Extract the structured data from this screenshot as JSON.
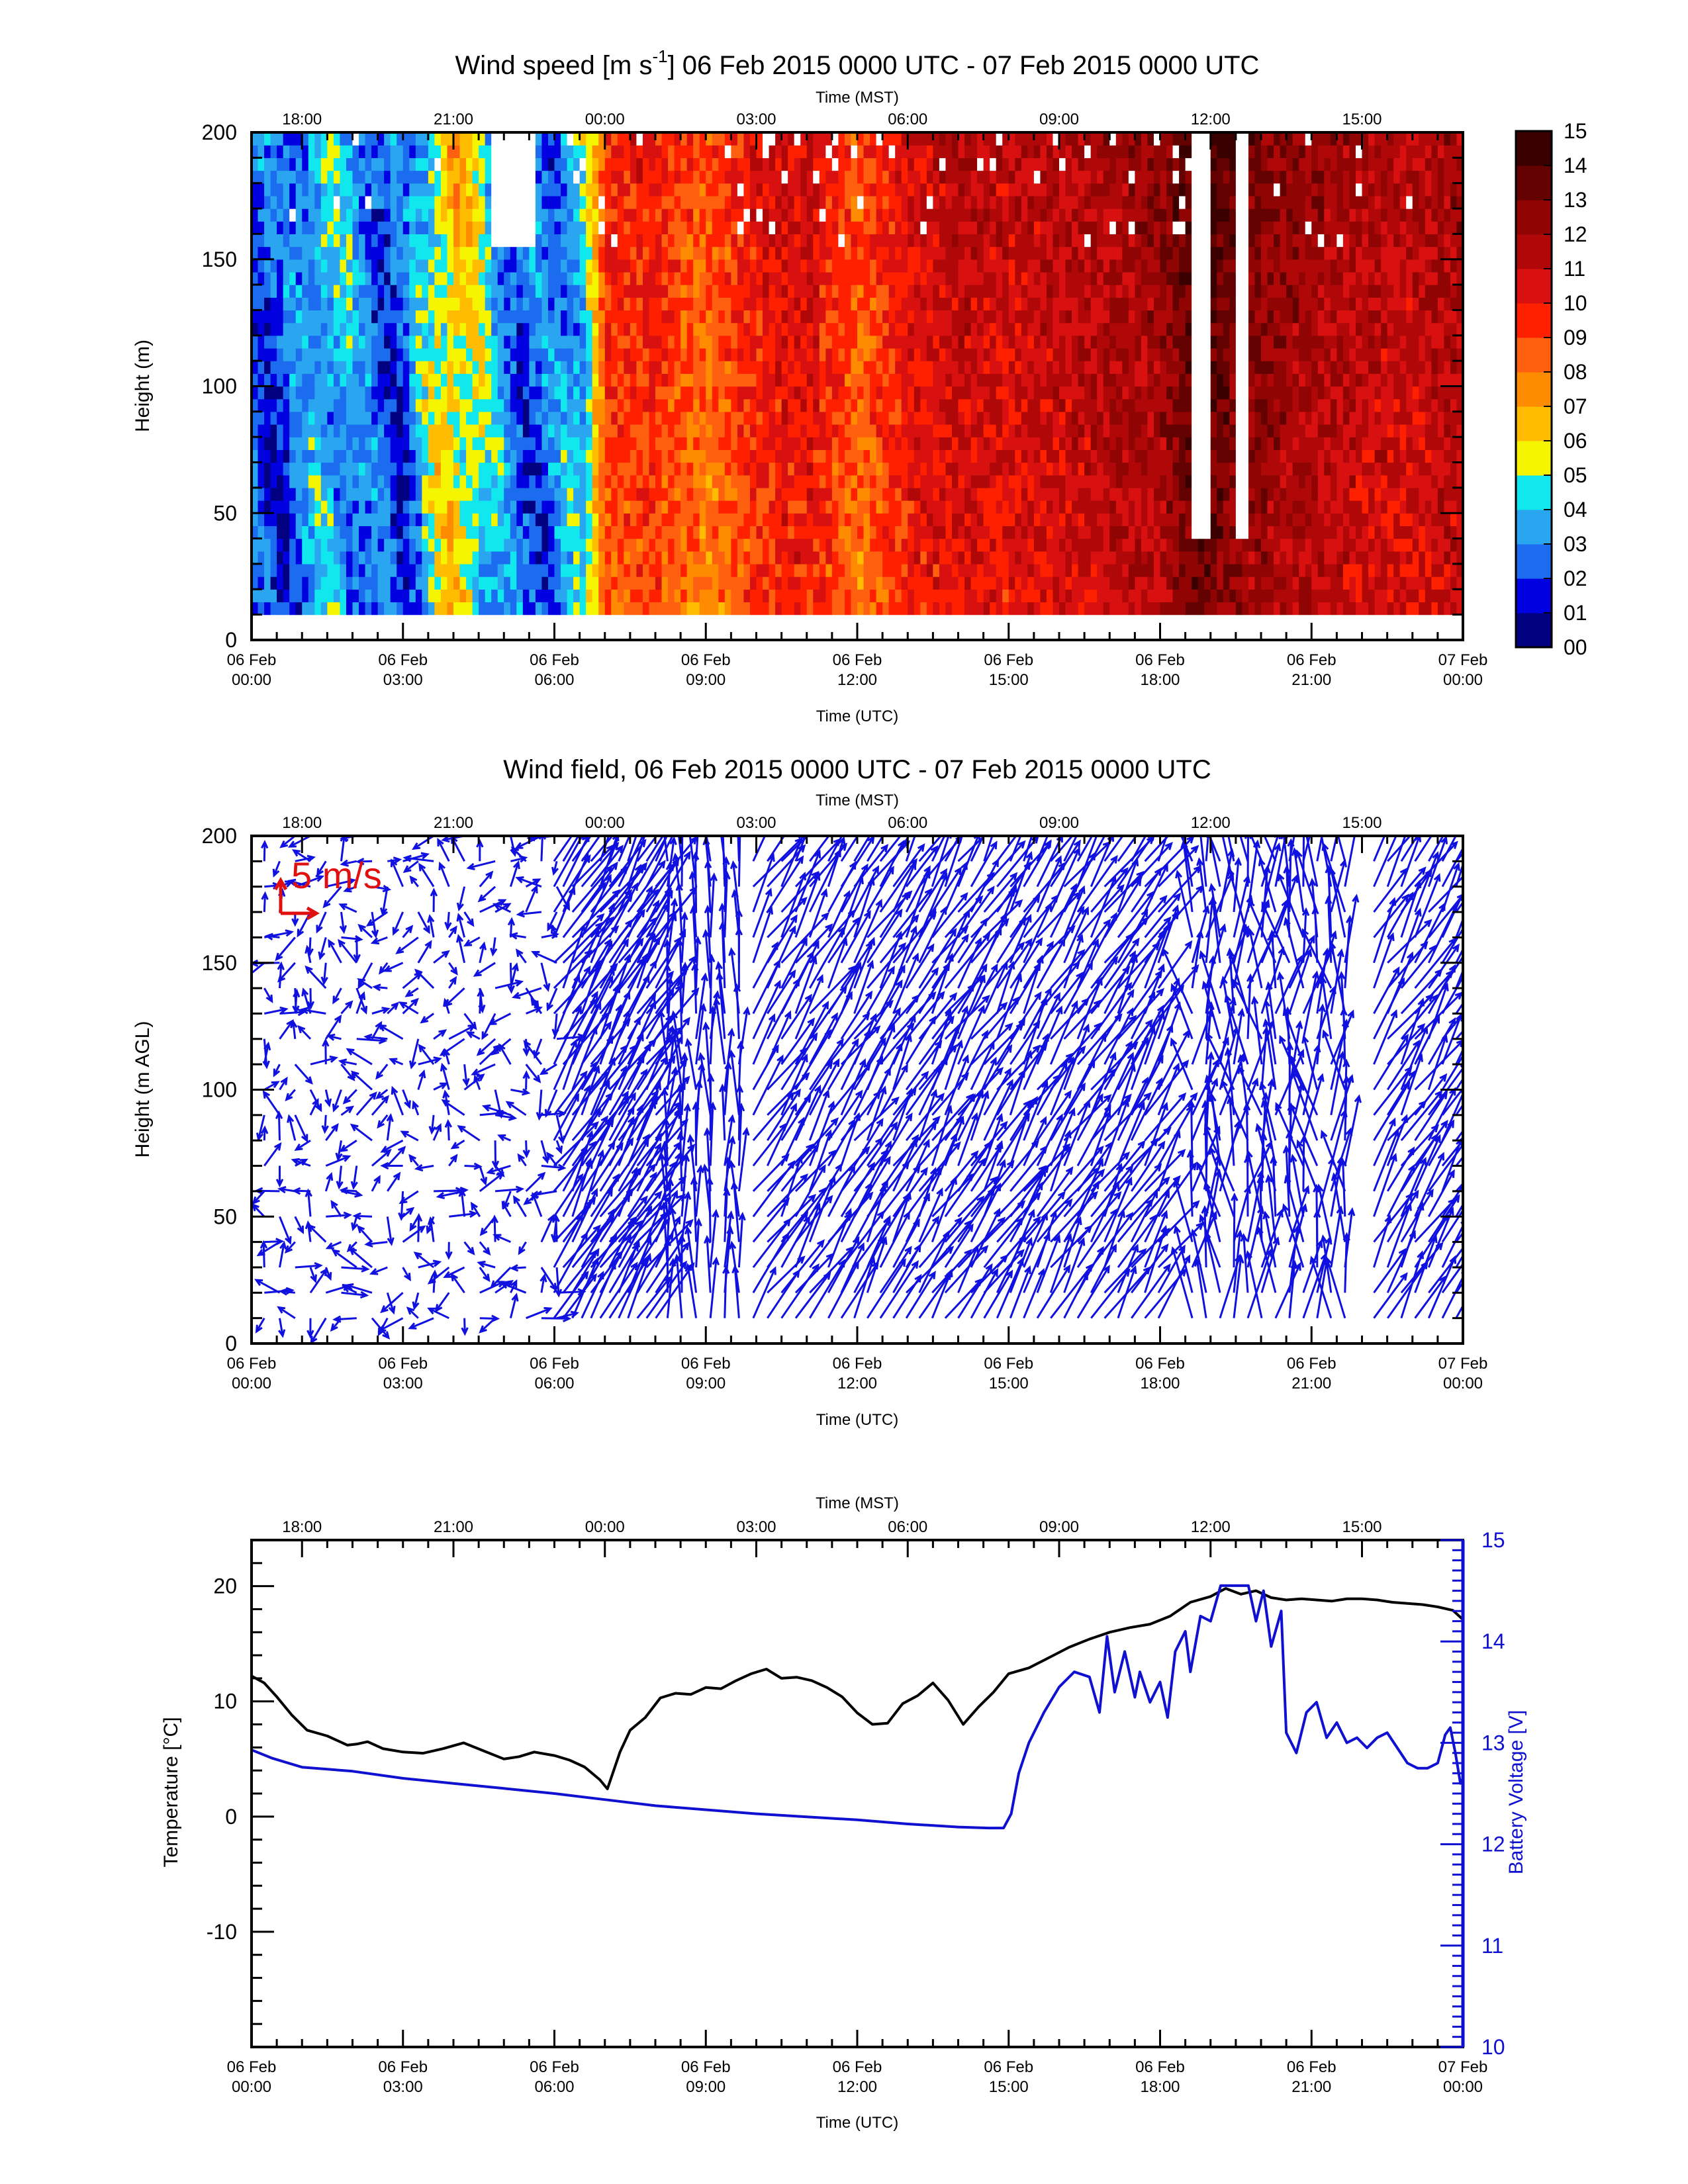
{
  "chart_data": [
    {
      "type": "heatmap",
      "title": "Wind speed [m s-1] 06 Feb 2015 0000 UTC - 07 Feb 2015 0000 UTC",
      "title_parts": {
        "pre": "Wind speed [m s",
        "sup": "-1",
        "post": "] 06 Feb 2015 0000 UTC - 07 Feb 2015 0000 UTC"
      },
      "xlabel": "Time (UTC)",
      "x2label": "Time (MST)",
      "ylabel": "Height (m)",
      "xlim": [
        0,
        24
      ],
      "ylim": [
        0,
        200
      ],
      "xticks_bottom": [
        {
          "x": 0,
          "l1": "06 Feb",
          "l2": "00:00"
        },
        {
          "x": 3,
          "l1": "06 Feb",
          "l2": "03:00"
        },
        {
          "x": 6,
          "l1": "06 Feb",
          "l2": "06:00"
        },
        {
          "x": 9,
          "l1": "06 Feb",
          "l2": "09:00"
        },
        {
          "x": 12,
          "l1": "06 Feb",
          "l2": "12:00"
        },
        {
          "x": 15,
          "l1": "06 Feb",
          "l2": "15:00"
        },
        {
          "x": 18,
          "l1": "06 Feb",
          "l2": "18:00"
        },
        {
          "x": 21,
          "l1": "06 Feb",
          "l2": "21:00"
        },
        {
          "x": 24,
          "l1": "07 Feb",
          "l2": "00:00"
        }
      ],
      "xticks_top": [
        {
          "x": 1,
          "l": "18:00"
        },
        {
          "x": 4,
          "l": "21:00"
        },
        {
          "x": 7,
          "l": "00:00"
        },
        {
          "x": 10,
          "l": "03:00"
        },
        {
          "x": 13,
          "l": "06:00"
        },
        {
          "x": 16,
          "l": "09:00"
        },
        {
          "x": 19,
          "l": "12:00"
        },
        {
          "x": 22,
          "l": "15:00"
        }
      ],
      "yticks": [
        0,
        50,
        100,
        150,
        200
      ],
      "data_ylim": [
        10,
        200
      ],
      "colorbar": {
        "levels": [
          "00",
          "01",
          "02",
          "03",
          "04",
          "05",
          "06",
          "07",
          "08",
          "09",
          "10",
          "11",
          "12",
          "13",
          "14",
          "15"
        ],
        "colors": [
          "#000080",
          "#0000e0",
          "#1c6cf0",
          "#2aa6f0",
          "#10e8ee",
          "#f5f500",
          "#ffbc00",
          "#ff8c00",
          "#ff6010",
          "#ff2000",
          "#d81010",
          "#b00808",
          "#900404",
          "#640202",
          "#3a0000"
        ]
      },
      "time_profile": [
        {
          "t": 0.0,
          "speed": 2.3
        },
        {
          "t": 0.5,
          "speed": 1.6
        },
        {
          "t": 1.0,
          "speed": 2.8
        },
        {
          "t": 1.5,
          "speed": 3.8
        },
        {
          "t": 2.0,
          "speed": 3.2
        },
        {
          "t": 2.5,
          "speed": 2.2
        },
        {
          "t": 3.0,
          "speed": 1.7
        },
        {
          "t": 3.5,
          "speed": 4.5
        },
        {
          "t": 4.0,
          "speed": 6.2
        },
        {
          "t": 4.5,
          "speed": 4.8
        },
        {
          "t": 5.0,
          "speed": 3.0
        },
        {
          "t": 5.5,
          "speed": 2.2
        },
        {
          "t": 6.0,
          "speed": 2.5
        },
        {
          "t": 6.6,
          "speed": 4.0
        },
        {
          "t": 7.0,
          "speed": 8.5
        },
        {
          "t": 8.0,
          "speed": 9.0
        },
        {
          "t": 9.0,
          "speed": 7.5
        },
        {
          "t": 10.0,
          "speed": 9.2
        },
        {
          "t": 11.0,
          "speed": 9.8
        },
        {
          "t": 12.0,
          "speed": 7.8
        },
        {
          "t": 13.0,
          "speed": 9.6
        },
        {
          "t": 14.0,
          "speed": 10.2
        },
        {
          "t": 15.0,
          "speed": 10.0
        },
        {
          "t": 16.0,
          "speed": 10.4
        },
        {
          "t": 17.0,
          "speed": 10.9
        },
        {
          "t": 18.0,
          "speed": 11.3
        },
        {
          "t": 18.8,
          "speed": 13.4
        },
        {
          "t": 19.5,
          "speed": 12.2
        },
        {
          "t": 20.0,
          "speed": 11.7
        },
        {
          "t": 21.0,
          "speed": 11.2
        },
        {
          "t": 22.0,
          "speed": 10.6
        },
        {
          "t": 23.0,
          "speed": 10.2
        },
        {
          "t": 24.0,
          "speed": 11.0
        }
      ],
      "missing_columns": [
        [
          18.65,
          18.95
        ],
        [
          19.45,
          19.7
        ]
      ]
    },
    {
      "type": "scatter",
      "title": "Wind field, 06 Feb 2015 0000 UTC - 07 Feb 2015 0000 UTC",
      "xlabel": "Time (UTC)",
      "x2label": "Time (MST)",
      "ylabel": "Height (m AGL)",
      "xlim": [
        0,
        24
      ],
      "ylim": [
        0,
        200
      ],
      "yticks": [
        0,
        50,
        100,
        150,
        200
      ],
      "reference_vector_label": "5 m/s",
      "arrow_color": "#1010e0",
      "bands": [
        {
          "from": 0.1,
          "to": 6.2,
          "cols": 20,
          "speed": 3,
          "dir": "variable"
        },
        {
          "from": 5.9,
          "to": 8.1,
          "cols": 12,
          "speed": 10,
          "dir": "from-nw"
        },
        {
          "from": 8.1,
          "to": 9.8,
          "cols": 6,
          "speed": 9,
          "dir": "from-n"
        },
        {
          "from": 9.8,
          "to": 11.2,
          "cols": 5,
          "speed": 10,
          "dir": "from-nw"
        },
        {
          "from": 11.3,
          "to": 14.9,
          "cols": 14,
          "speed": 10,
          "dir": "from-nw"
        },
        {
          "from": 14.9,
          "to": 18.1,
          "cols": 12,
          "speed": 11,
          "dir": "from-nw"
        },
        {
          "from": 18.5,
          "to": 21.8,
          "cols": 12,
          "speed": 12,
          "dir": "from-n-converging"
        },
        {
          "from": 22.1,
          "to": 24.0,
          "cols": 7,
          "speed": 11,
          "dir": "from-nw"
        }
      ]
    },
    {
      "type": "line",
      "title": "",
      "xlabel": "Time (UTC)",
      "x2label": "Time (MST)",
      "ylabel": "Temperature [°C]",
      "y2label": "Battery Voltage [V]",
      "xlim": [
        0,
        24
      ],
      "ylim": [
        -20,
        24
      ],
      "y2lim": [
        10,
        15
      ],
      "yticks": [
        -10,
        0,
        10,
        20
      ],
      "y2ticks": [
        10,
        11,
        12,
        13,
        14,
        15
      ],
      "series": [
        {
          "name": "Temperature",
          "axis": "left",
          "color": "#000000",
          "x": [
            0,
            0.25,
            0.5,
            0.8,
            1.1,
            1.5,
            1.9,
            2.1,
            2.3,
            2.6,
            3.0,
            3.4,
            3.8,
            4.2,
            4.6,
            5.0,
            5.3,
            5.6,
            6.0,
            6.3,
            6.6,
            6.9,
            7.05,
            7.3,
            7.5,
            7.8,
            8.1,
            8.4,
            8.7,
            9.0,
            9.3,
            9.6,
            9.9,
            10.2,
            10.5,
            10.8,
            11.1,
            11.4,
            11.7,
            12.0,
            12.3,
            12.6,
            12.9,
            13.2,
            13.5,
            13.8,
            14.1,
            14.4,
            14.7,
            15.0,
            15.4,
            15.8,
            16.2,
            16.6,
            17.0,
            17.4,
            17.8,
            18.2,
            18.6,
            19.0,
            19.3,
            19.6,
            19.9,
            20.2,
            20.5,
            20.8,
            21.1,
            21.4,
            21.7,
            22.0,
            22.3,
            22.6,
            22.9,
            23.2,
            23.5,
            23.8,
            24.0
          ],
          "y": [
            12.2,
            11.6,
            10.4,
            8.8,
            7.5,
            7.0,
            6.2,
            6.3,
            6.5,
            5.9,
            5.6,
            5.5,
            5.9,
            6.4,
            5.7,
            5.0,
            5.2,
            5.6,
            5.3,
            4.9,
            4.3,
            3.2,
            2.4,
            5.6,
            7.5,
            8.6,
            10.3,
            10.7,
            10.6,
            11.2,
            11.1,
            11.8,
            12.4,
            12.8,
            12.0,
            12.1,
            11.8,
            11.2,
            10.4,
            9.0,
            8.0,
            8.1,
            9.8,
            10.5,
            11.6,
            10.1,
            8.0,
            9.5,
            10.8,
            12.4,
            12.9,
            13.8,
            14.7,
            15.4,
            16.0,
            16.4,
            16.7,
            17.4,
            18.6,
            19.1,
            19.8,
            19.3,
            19.6,
            19.0,
            18.8,
            18.9,
            18.8,
            18.7,
            18.9,
            18.9,
            18.8,
            18.6,
            18.5,
            18.4,
            18.2,
            17.9,
            17.1
          ]
        },
        {
          "name": "Battery Voltage",
          "axis": "right",
          "color": "#1010d0",
          "x": [
            0,
            0.4,
            1.0,
            2.0,
            3.0,
            4.0,
            5.0,
            6.0,
            7.0,
            8.0,
            9.0,
            10.0,
            11.0,
            12.0,
            13.0,
            14.0,
            14.6,
            14.9,
            15.05,
            15.2,
            15.4,
            15.7,
            16.0,
            16.3,
            16.6,
            16.8,
            16.95,
            17.1,
            17.3,
            17.5,
            17.6,
            17.8,
            18.0,
            18.15,
            18.3,
            18.5,
            18.6,
            18.8,
            19.0,
            19.2,
            19.4,
            19.6,
            19.75,
            19.9,
            20.05,
            20.2,
            20.4,
            20.5,
            20.7,
            20.9,
            21.1,
            21.3,
            21.5,
            21.7,
            21.9,
            22.1,
            22.3,
            22.5,
            22.7,
            22.9,
            23.1,
            23.3,
            23.5,
            23.65,
            23.75,
            23.85,
            23.95,
            24.0
          ],
          "y": [
            12.93,
            12.85,
            12.76,
            12.72,
            12.65,
            12.6,
            12.55,
            12.5,
            12.44,
            12.38,
            12.34,
            12.3,
            12.27,
            12.24,
            12.2,
            12.17,
            12.16,
            12.16,
            12.3,
            12.7,
            13.0,
            13.3,
            13.55,
            13.7,
            13.65,
            13.3,
            14.05,
            13.5,
            13.9,
            13.45,
            13.7,
            13.4,
            13.6,
            13.25,
            13.9,
            14.1,
            13.7,
            14.25,
            14.2,
            14.55,
            14.55,
            14.55,
            14.55,
            14.2,
            14.5,
            13.95,
            14.3,
            13.1,
            12.9,
            13.3,
            13.4,
            13.05,
            13.2,
            13.0,
            13.05,
            12.95,
            13.05,
            13.1,
            12.95,
            12.8,
            12.75,
            12.75,
            12.8,
            13.08,
            13.15,
            12.9,
            12.6,
            12.65
          ]
        }
      ]
    }
  ]
}
